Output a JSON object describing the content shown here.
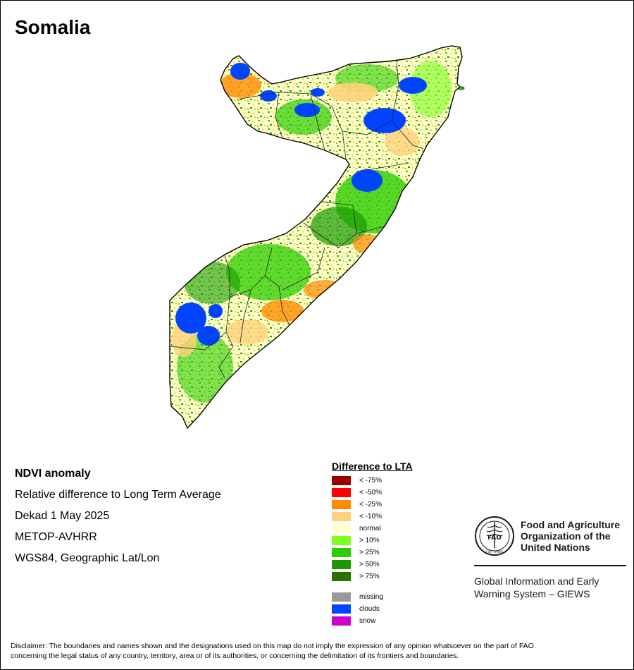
{
  "title": "Somalia",
  "info": {
    "heading": "NDVI anomaly",
    "line1": "Relative difference to Long Term Average",
    "line2": "Dekad 1 May 2025",
    "line3": "METOP-AVHRR",
    "line4": "WGS84, Geographic Lat/Lon"
  },
  "legend": {
    "title": "Difference to LTA",
    "items": [
      {
        "label": "< -75%",
        "color": "#990000"
      },
      {
        "label": "< -50%",
        "color": "#ff0000"
      },
      {
        "label": "< -25%",
        "color": "#ff8c00"
      },
      {
        "label": "< -10%",
        "color": "#ffd27a"
      },
      {
        "label": "normal",
        "color": "#ffffcc"
      },
      {
        "label": "> 10%",
        "color": "#7cff1e"
      },
      {
        "label": "> 25%",
        "color": "#2ecc00"
      },
      {
        "label": "> 50%",
        "color": "#1a9a00"
      },
      {
        "label": "> 75%",
        "color": "#2a7300"
      }
    ],
    "extra": [
      {
        "label": "missing",
        "color": "#999999"
      },
      {
        "label": "clouds",
        "color": "#0044ff"
      },
      {
        "label": "snow",
        "color": "#cc00cc"
      }
    ]
  },
  "fao": {
    "name1": "Food and Agriculture",
    "name2": "Organization of the",
    "name3": "United Nations",
    "logo_text": "FAO",
    "logo_motto": "FIAT PANIS",
    "giews1": "Global Information and Early",
    "giews2": "Warning System – GIEWS"
  },
  "disclaimer1": "Disclaimer: The boundaries and names shown and the designations used on this map do not imply the expression of any opinion whatsoever on the part of FAO",
  "disclaimer2": "concerning the legal status of any country, territory, area or of its authorities, or concerning the delimitation of its frontiers and boundaries."
}
